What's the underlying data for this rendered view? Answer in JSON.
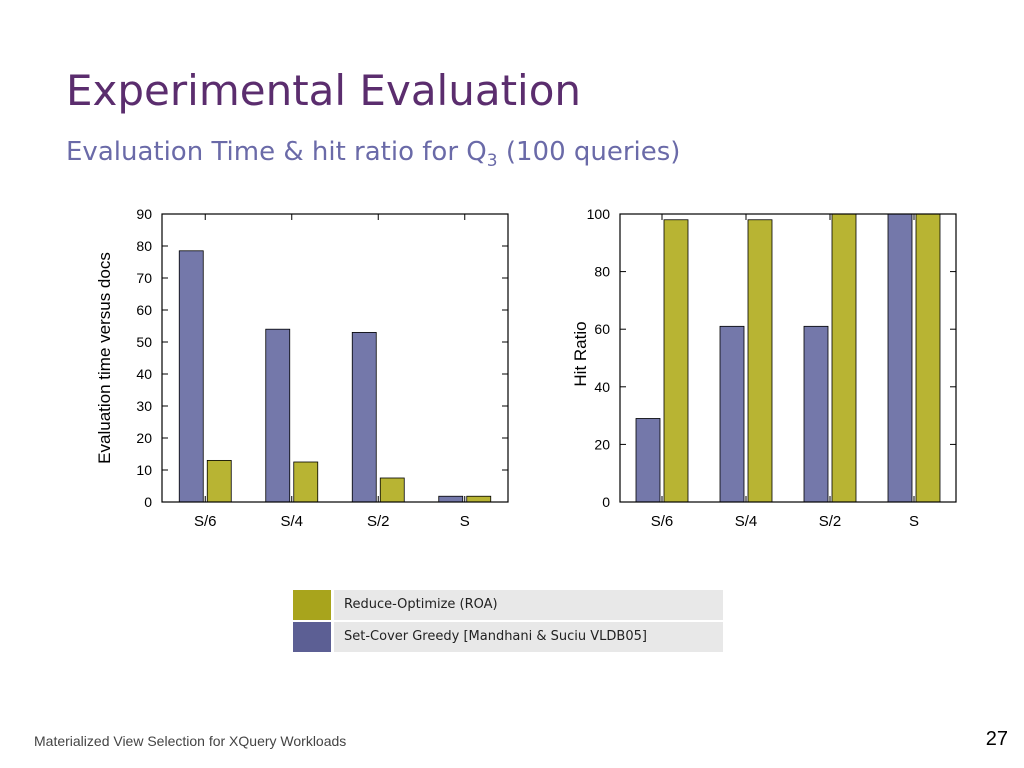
{
  "slide": {
    "title": "Experimental Evaluation",
    "subtitle_main": "Evaluation Time & hit ratio for Q",
    "subtitle_sub": "3",
    "subtitle_tail": " (100 queries)",
    "footer": "Materialized View Selection for XQuery Workloads",
    "page_number": "27"
  },
  "colors": {
    "set_cover": "#7478aa",
    "roa": "#b8b433",
    "legend_roa": "#a8a41c",
    "legend_set_cover": "#5c5f94",
    "title": "#5b2d6e",
    "subtitle": "#6a6aa8"
  },
  "legend": [
    {
      "label": "Reduce-Optimize (ROA)",
      "color_key": "legend_roa"
    },
    {
      "label": "Set-Cover Greedy [Mandhani & Suciu VLDB05]",
      "color_key": "legend_set_cover"
    }
  ],
  "chart_data": [
    {
      "type": "bar",
      "categories": [
        "S/6",
        "S/4",
        "S/2",
        "S"
      ],
      "series": [
        {
          "name": "Set-Cover Greedy [Mandhani & Suciu VLDB05]",
          "values": [
            78.5,
            54,
            53,
            1.8
          ]
        },
        {
          "name": "Reduce-Optimize (ROA)",
          "values": [
            13,
            12.5,
            7.5,
            1.8
          ]
        }
      ],
      "title": "",
      "xlabel": "",
      "ylabel": "Evaluation time versus docs",
      "ylim": [
        0,
        90
      ],
      "yticks": [
        0,
        10,
        20,
        30,
        40,
        50,
        60,
        70,
        80,
        90
      ],
      "ylabel_side": "left"
    },
    {
      "type": "bar",
      "categories": [
        "S/6",
        "S/4",
        "S/2",
        "S"
      ],
      "series": [
        {
          "name": "Set-Cover Greedy [Mandhani & Suciu VLDB05]",
          "values": [
            29,
            61,
            61,
            100
          ]
        },
        {
          "name": "Reduce-Optimize (ROA)",
          "values": [
            98,
            98,
            100,
            100
          ]
        }
      ],
      "title": "",
      "xlabel": "",
      "ylabel": "Hit Ratio",
      "ylim": [
        0,
        100
      ],
      "yticks": [
        0,
        20,
        40,
        60,
        80,
        100
      ],
      "ylabel_side": "inside-left"
    }
  ]
}
